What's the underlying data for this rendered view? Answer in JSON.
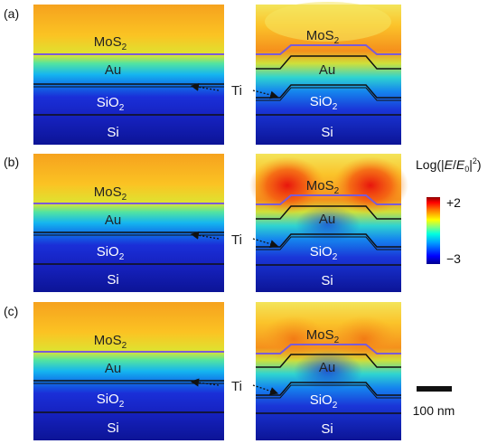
{
  "panels": [
    {
      "label": "(a)"
    },
    {
      "label": "(b)"
    },
    {
      "label": "(c)"
    }
  ],
  "layers": {
    "mos2": "MoS",
    "mos2_sub": "2",
    "au": "Au",
    "sio2": "SiO",
    "sio2_sub": "2",
    "si": "Si"
  },
  "ti_label": "Ti",
  "colorbar": {
    "title_prefix": "Log(|",
    "title_E": "E",
    "title_slash": "/",
    "title_E0": "E",
    "title_0": "0",
    "title_suffix": "|",
    "title_sup": "2",
    "title_close": ")",
    "max_label": "+2",
    "min_label": "−3",
    "colors": [
      "#00008f",
      "#0000ff",
      "#00a0ff",
      "#00ffe0",
      "#80ff80",
      "#ffff00",
      "#ff8000",
      "#ff0000",
      "#8f0000"
    ]
  },
  "scalebar": {
    "label": "100 nm"
  },
  "colors": {
    "bg": "#ffffff",
    "mos2_line": "#7b5bd6",
    "interface_line": "#111111"
  }
}
